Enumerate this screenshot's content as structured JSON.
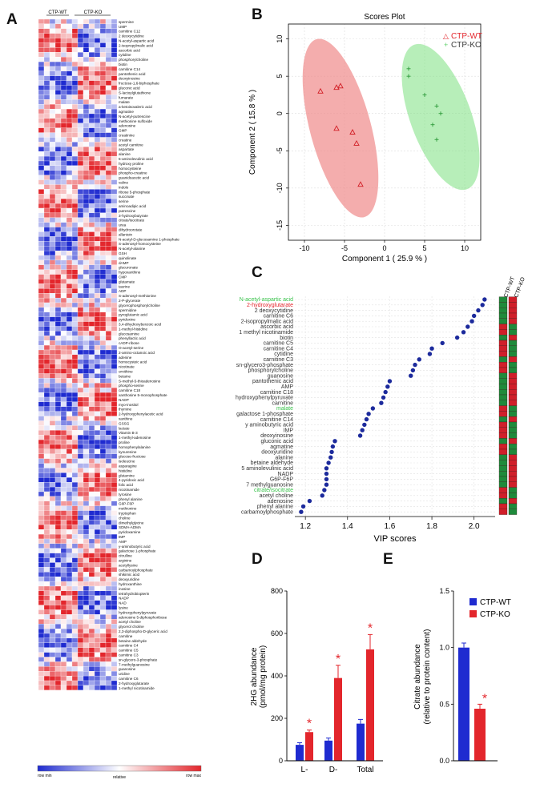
{
  "panels": {
    "A": "A",
    "B": "B",
    "C": "C",
    "D": "D",
    "E": "E"
  },
  "colors": {
    "red": "#e3262c",
    "blue": "#1f2bd0",
    "green": "#5fd06a",
    "pink": "#f08a8a",
    "navy": "#1c2a9c"
  },
  "heatmap": {
    "groups": [
      "CTP-WT",
      "CTP-KO"
    ],
    "scale_labels": [
      "row min",
      "relative",
      "row max"
    ],
    "metabolites": [
      "spermine",
      "UMP",
      "carnitine C12",
      "2 deoxycytidine",
      "N-acetyl-aspartic acid",
      "2-isopropylmalic acid",
      "ascorbic acid",
      "cytidine",
      "phosphorylcholine",
      "biotin",
      "carnitine C14",
      "pantothenic acid",
      "deoxyinosine",
      "fructose-1,6-biphosphate",
      "gluconic acid",
      "S-lactoylglutathione",
      "fumarate",
      "malate",
      "a-ketoisovaleric acid",
      "agmatine",
      "N-acetyl-putrescine",
      "methionine sulfoxide",
      "adenosine",
      "GMP",
      "creatinine",
      "creatine",
      "acetyl carnitine",
      "aspartate",
      "alanine",
      "5-aminolevulinic acid",
      "hydroxy proline",
      "homocysteine",
      "phospho-creatine",
      "guanidoacetic acid",
      "valine",
      "indole",
      "ribose 5-phosphate",
      "succinate",
      "serine",
      "aminoadipic acid",
      "putrescine",
      "3-hydroxybutyrate",
      "citrate/isocitrate",
      "urea",
      "dihydroorotate",
      "allantoin",
      "N-acetyl-D-glucosamine 1-phosphate",
      "S-adenosyl-homocysteine",
      "N-acetyl-alanine",
      "GSH",
      "quinolinate",
      "dAMP",
      "glucuronate",
      "hypoxanthine",
      "CMP",
      "glutamate",
      "taurine",
      "ADP",
      "S-adenosyl-methionine",
      "2-P-glycerate",
      "glycerophosphorylcholine",
      "spermidine",
      "pyroglutamic acid",
      "pyridoxine",
      "3,4-dihydroxybenzoic acid",
      "1-methyl-histidine",
      "glucosamine",
      "phenyllactic acid",
      "cADP-ribose",
      "O-acetyl-serine",
      "2-amino-octanoic acid",
      "adenine",
      "homocysteic acid",
      "nicotinate",
      "ornithine",
      "betaine",
      "S-methyl-5-thioadenosine",
      "phospho-serine",
      "carnitine C18",
      "xanthosine 5-monophosphate",
      "NADP",
      "myo-inositol",
      "thymine",
      "2-hydroxyphenylacetic acid",
      "xanthine",
      "GSSG",
      "lactate",
      "Vitamin B-3",
      "1-methyl-adenosine",
      "proline",
      "homophenylalanine",
      "kynurenine",
      "glucose-fructose",
      "isoleucine",
      "asparagine",
      "histidine",
      "glutamine",
      "4-pyridoxic acid",
      "folic acid",
      "nicotinamide",
      "tyrosine",
      "phenyl alanine",
      "G6P-F6P",
      "methionine",
      "tryptophan",
      "choline",
      "dimethylglycine",
      "SDMA-ADMA",
      "pyridoxamine",
      "IMP",
      "AMP",
      "y-aminobutyric acid",
      "galactose 1-phosphate",
      "citrulline",
      "arginine",
      "acetyllysine",
      "carbamoylphosphate",
      "shikimic acid",
      "deoxyuridine",
      "hydroxanthine",
      "inosine",
      "tetrahydrobiopterin",
      "NADP",
      "NAD",
      "lysine",
      "hydroxyphenylpyruvate",
      "adenosine 5-diphosphoribose",
      "acetyl choline",
      "glycerol choline",
      "2,3-diphospho-D-glyceric acid",
      "carnitine",
      "betaine aldehyde",
      "carnitine C4",
      "carnitine C5",
      "carnitine C3",
      "sn-glycero-3-phosphate",
      "7-methylguanosine",
      "guanosine",
      "uridine",
      "carnitine C6",
      "2-hydroxyglutarate",
      "1-methyl nicotinamide"
    ]
  },
  "scores_plot": {
    "title": "Scores Plot",
    "xlabel": "Component 1 ( 25.9 % )",
    "ylabel": "Component 2 ( 15.8 % )",
    "xticks": [
      "-10",
      "-5",
      "0",
      "5",
      "10"
    ],
    "yticks": [
      "10",
      "5",
      "0",
      "-5",
      "-10",
      "-15"
    ],
    "legend": [
      "CTP-WT",
      "CTP-KO"
    ],
    "chart_data": {
      "type": "scatter",
      "xlim": [
        -12,
        12
      ],
      "ylim": [
        -17,
        12
      ],
      "series": [
        {
          "name": "CTP-WT",
          "marker": "triangle",
          "points": [
            [
              -8,
              3
            ],
            [
              -6,
              3.5
            ],
            [
              -5.5,
              3.7
            ],
            [
              -6,
              -2
            ],
            [
              -4,
              -2.5
            ],
            [
              -3.5,
              -4
            ],
            [
              -3,
              -9.5
            ]
          ]
        },
        {
          "name": "CTP-KO",
          "marker": "plus",
          "points": [
            [
              3,
              6
            ],
            [
              3,
              5
            ],
            [
              5,
              2.5
            ],
            [
              6.5,
              1
            ],
            [
              7,
              0
            ],
            [
              6,
              -1.5
            ],
            [
              6.5,
              -3.5
            ]
          ]
        }
      ]
    }
  },
  "vip_plot": {
    "xlabel": "VIP scores",
    "xticks": [
      "1.2",
      "1.4",
      "1.6",
      "1.8",
      "2.0"
    ],
    "groups": [
      "CTP-WT",
      "CTP-KO"
    ],
    "chart_data": {
      "type": "scatter",
      "xlim": [
        1.15,
        2.1
      ],
      "labels": [
        "N-acetyl-aspartic acid",
        "2-hydroxyglutarate",
        "2 deoxycytidine",
        "carnitine C6",
        "2-isopropylmalic acid",
        "ascorbic acid",
        "1 methyl nicotinamide",
        "biotin",
        "carnitine C5",
        "carnitine C4",
        "cytidine",
        "carnitine C3",
        "sn-glycero3-phosphate",
        "phosphorylcholine",
        "guanosine",
        "pantothenic acid",
        "AMP",
        "carnitine C18",
        "hydroxyphenylpyruvate",
        "carnitine",
        "malate",
        "galactose 1-phosphate",
        "carnitine C14",
        "y aminobutyric acid",
        "IMP",
        "deoxyinosine",
        "gluconic acid",
        "agmatine",
        "deoxyuridine",
        "alanine",
        "betaine aldehyde",
        "5 aminolevulinic acid",
        "NADP",
        "G6P-F6P",
        "7 methylguanosine",
        "citrate/isocitrate",
        "acetyl choline",
        "adenosine",
        "phenyl alanine",
        "carbamoylphosphate"
      ],
      "label_colors": [
        "green",
        "red",
        "dark",
        "dark",
        "dark",
        "dark",
        "dark",
        "dark",
        "dark",
        "dark",
        "dark",
        "dark",
        "dark",
        "dark",
        "dark",
        "dark",
        "dark",
        "dark",
        "dark",
        "dark",
        "green",
        "dark",
        "dark",
        "dark",
        "dark",
        "dark",
        "dark",
        "dark",
        "dark",
        "dark",
        "dark",
        "dark",
        "dark",
        "dark",
        "dark",
        "green",
        "dark",
        "dark",
        "dark",
        "dark"
      ],
      "values": [
        2.05,
        2.04,
        2.02,
        2.0,
        1.99,
        1.97,
        1.95,
        1.92,
        1.85,
        1.8,
        1.79,
        1.74,
        1.72,
        1.71,
        1.7,
        1.6,
        1.59,
        1.58,
        1.57,
        1.56,
        1.52,
        1.5,
        1.49,
        1.48,
        1.47,
        1.46,
        1.34,
        1.33,
        1.325,
        1.32,
        1.31,
        1.3,
        1.3,
        1.3,
        1.3,
        1.29,
        1.28,
        1.22,
        1.19,
        1.18
      ]
    }
  },
  "bar_2hg": {
    "ylabel_1": "2HG abundance",
    "ylabel_2": "(pmol/mg protein)",
    "yticks": [
      "0",
      "200",
      "400",
      "600",
      "800"
    ],
    "categories": [
      "L-",
      "D-",
      "Total"
    ],
    "star": "*",
    "chart_data": {
      "type": "bar",
      "ylim": [
        0,
        800
      ],
      "categories": [
        "L-",
        "D-",
        "Total"
      ],
      "series": [
        {
          "name": "CTP-WT",
          "values": [
            75,
            95,
            175
          ],
          "errors": [
            10,
            12,
            20
          ]
        },
        {
          "name": "CTP-KO",
          "values": [
            135,
            390,
            525
          ],
          "errors": [
            10,
            60,
            70
          ]
        }
      ]
    }
  },
  "bar_citrate": {
    "ylabel_1": "Citrate abundance",
    "ylabel_2": "(relative to protein content)",
    "yticks": [
      "0.0",
      "0.5",
      "1.0",
      "1.5"
    ],
    "legend": [
      "CTP-WT",
      "CTP-KO"
    ],
    "star": "*",
    "chart_data": {
      "type": "bar",
      "ylim": [
        0,
        1.5
      ],
      "categories": [
        "CTP-WT",
        "CTP-KO"
      ],
      "series": [
        {
          "name": "Citrate",
          "values": [
            1.0,
            0.46
          ],
          "errors": [
            0.04,
            0.04
          ]
        }
      ]
    }
  }
}
